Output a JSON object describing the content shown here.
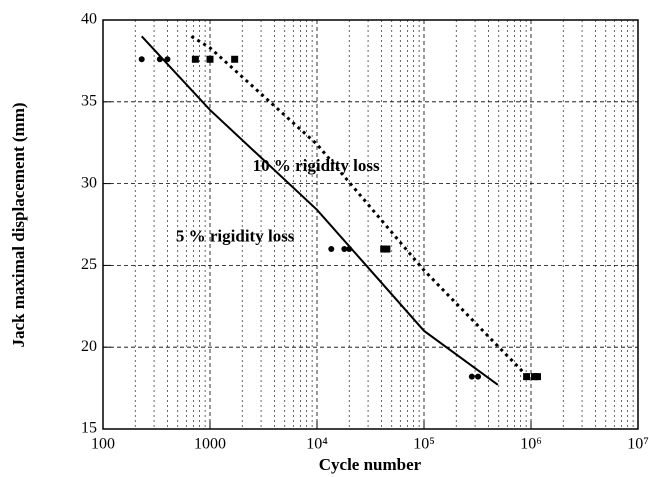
{
  "chart_data": {
    "type": "scatter",
    "xlabel": "Cycle number",
    "ylabel": "Jack maximal displacement (mm)",
    "xscale": "log",
    "xlim": [
      100,
      10000000
    ],
    "ylim": [
      15,
      40
    ],
    "xticks": [
      100,
      1000,
      {
        "value": 10000,
        "label": "10⁴"
      },
      {
        "value": 100000,
        "label": "10⁵"
      },
      {
        "value": 1000000,
        "label": "10⁶"
      },
      {
        "value": 10000000,
        "label": "10⁷"
      }
    ],
    "yticks": [
      15,
      20,
      25,
      30,
      35,
      40
    ],
    "grid": true,
    "minor_grid": true,
    "series": [
      {
        "marker": "circle",
        "color": "#000000",
        "x": [
          230,
          340,
          400,
          13600,
          18000,
          20000,
          280000,
          320000
        ],
        "values": [
          37.6,
          37.6,
          37.6,
          26,
          26,
          26,
          18.2,
          18.2
        ]
      },
      {
        "marker": "square",
        "color": "#000000",
        "x": [
          730,
          1000,
          1700,
          42000,
          45000,
          910000,
          1080000,
          1150000
        ],
        "values": [
          37.6,
          37.6,
          37.6,
          26,
          26,
          18.2,
          18.2,
          18.2
        ]
      }
    ],
    "curves": [
      {
        "style": "solid",
        "color": "#000000",
        "x": [
          230,
          1000,
          10000,
          100000,
          490000
        ],
        "values": [
          39,
          34.5,
          28.4,
          21.0,
          17.7
        ]
      },
      {
        "style": "dotted",
        "color": "#000000",
        "x": [
          670,
          1000,
          10000,
          100000,
          930000
        ],
        "values": [
          39,
          38.3,
          32.4,
          24.7,
          18.2
        ]
      }
    ],
    "annotations": [
      {
        "text": "10 % rigidity loss",
        "x": 2500,
        "y": 31
      },
      {
        "text": "5 % rigidity loss",
        "x": 480,
        "y": 26.7
      }
    ]
  }
}
